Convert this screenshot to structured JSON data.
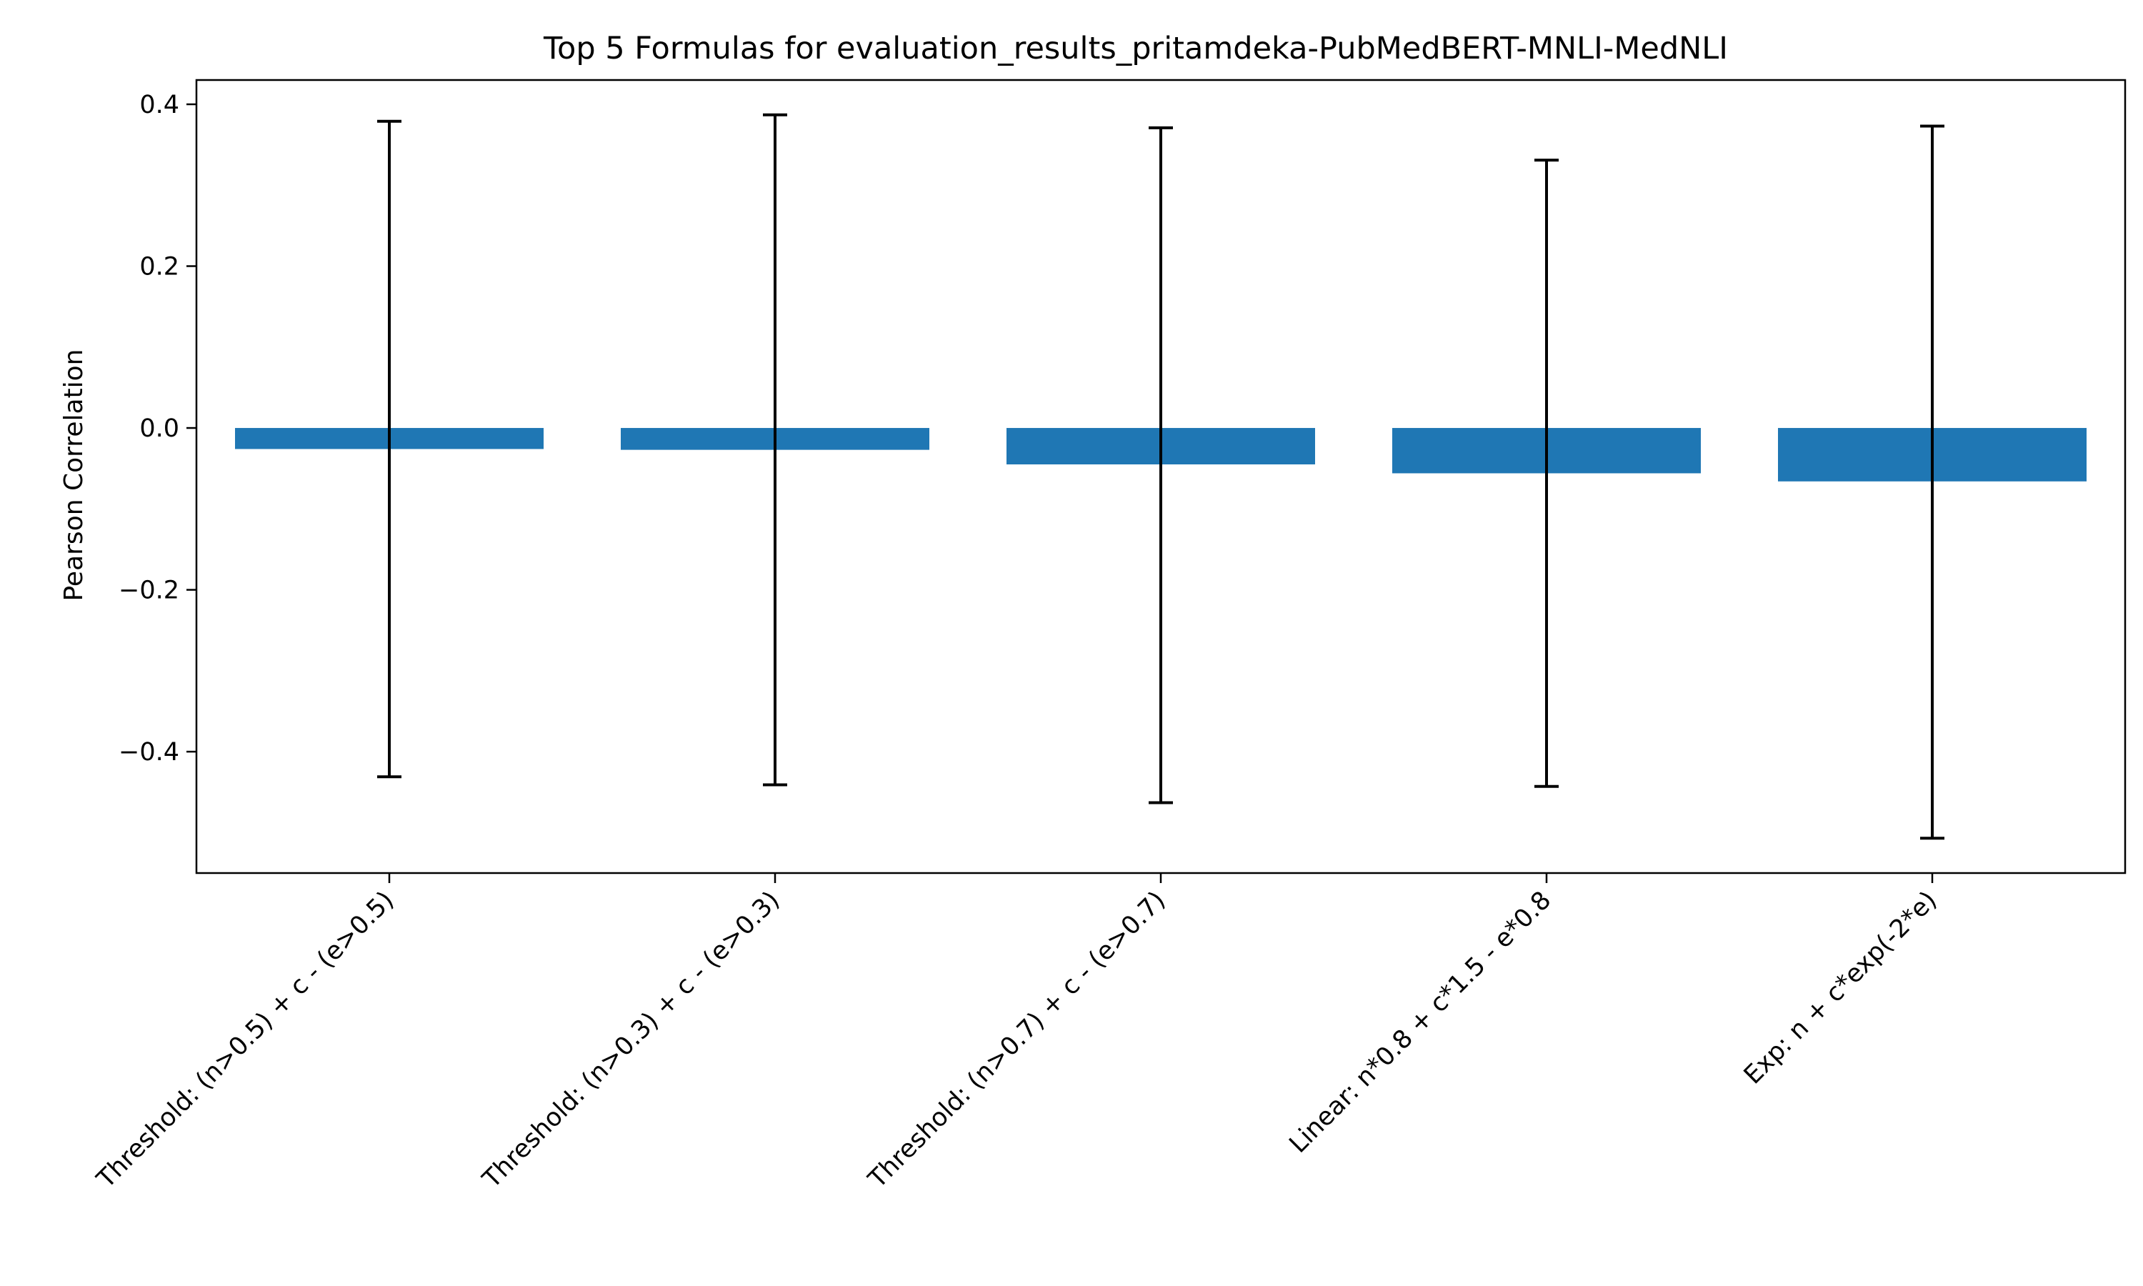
{
  "chart_data": {
    "type": "bar",
    "title": "Top 5 Formulas for evaluation_results_pritamdeka-PubMedBERT-MNLI-MedNLI",
    "xlabel": "",
    "ylabel": "Pearson Correlation",
    "categories": [
      "Threshold: (n>0.5) + c - (e>0.5)",
      "Threshold: (n>0.3) + c - (e>0.3)",
      "Threshold: (n>0.7) + c - (e>0.7)",
      "Linear: n*0.8 + c*1.5 - e*0.8",
      "Exp: n + c*exp(-2*e)"
    ],
    "values": [
      -0.026,
      -0.027,
      -0.045,
      -0.056,
      -0.066
    ],
    "error_low": [
      -0.431,
      -0.441,
      -0.463,
      -0.443,
      -0.507
    ],
    "error_high": [
      0.379,
      0.387,
      0.371,
      0.331,
      0.373
    ],
    "ylim": [
      -0.55,
      0.43
    ],
    "yticks": [
      -0.4,
      -0.2,
      0.0,
      0.2,
      0.4
    ],
    "ytick_labels": [
      "−0.4",
      "−0.2",
      "0.0",
      "0.2",
      "0.4"
    ],
    "bar_color": "#1f77b4",
    "errorbar_color": "#000000",
    "grid": false,
    "legend": "none"
  }
}
